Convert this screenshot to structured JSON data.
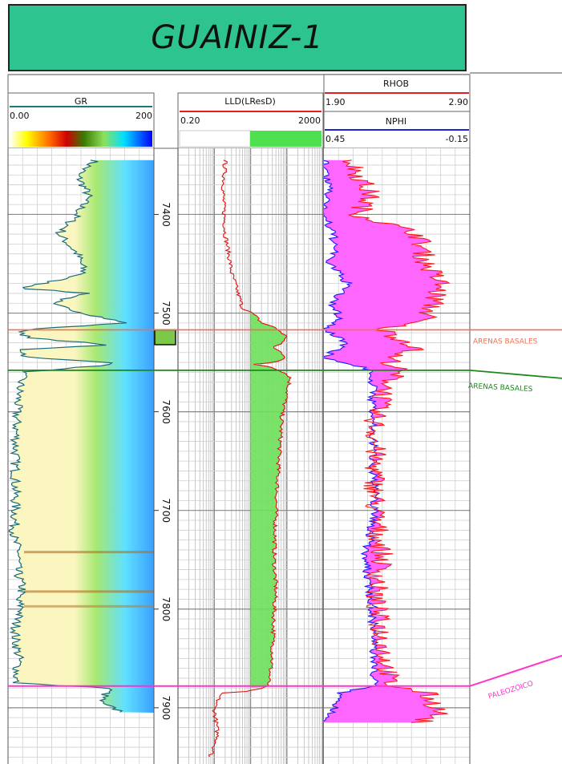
{
  "title": "GUAINIZ-1",
  "tracks": {
    "gr": {
      "name": "GR",
      "min": "0.00",
      "max": "200"
    },
    "lld": {
      "name": "LLD(LResD)",
      "min": "0.20",
      "max": "2000"
    },
    "rhob": {
      "name": "RHOB",
      "min": "1.90",
      "max": "2.90"
    },
    "nphi": {
      "name": "NPHI",
      "min": "0.45",
      "max": "-0.15"
    }
  },
  "depth_labels": [
    "7400",
    "7500",
    "7600",
    "7700",
    "7800",
    "7900"
  ],
  "markers": [
    {
      "name": "ARENAS BASALES",
      "depth": 7517,
      "color": "#f07050"
    },
    {
      "name": "ARENAS BASALES",
      "depth": 7558,
      "color": "#1a8a1a"
    },
    {
      "name": "PALEOZOICO",
      "depth": 7878,
      "color": "#ff33cc"
    }
  ],
  "colors": {
    "title_bg": "#2ec48f",
    "gr_fill": "#fbf6c0",
    "lld_fill": "#6ee05a",
    "rhob": "#ff2020",
    "nphi": "#2020ff",
    "crossover": "#ff66ff"
  },
  "chart_data": {
    "type": "line",
    "depth_range": [
      7333,
      7957
    ],
    "tracks": [
      {
        "name": "GR",
        "scale": "linear",
        "range": [
          0,
          200
        ],
        "points": [
          [
            7345,
            120
          ],
          [
            7360,
            95
          ],
          [
            7380,
            110
          ],
          [
            7400,
            95
          ],
          [
            7420,
            70
          ],
          [
            7440,
            95
          ],
          [
            7460,
            105
          ],
          [
            7475,
            20
          ],
          [
            7480,
            110
          ],
          [
            7490,
            55
          ],
          [
            7500,
            105
          ],
          [
            7510,
            160
          ],
          [
            7517,
            20
          ],
          [
            7525,
            25
          ],
          [
            7532,
            140
          ],
          [
            7537,
            20
          ],
          [
            7545,
            25
          ],
          [
            7551,
            160
          ],
          [
            7560,
            20
          ],
          [
            7580,
            15
          ],
          [
            7600,
            12
          ],
          [
            7650,
            10
          ],
          [
            7700,
            10
          ],
          [
            7730,
            8
          ],
          [
            7740,
            15
          ],
          [
            7760,
            12
          ],
          [
            7780,
            20
          ],
          [
            7790,
            12
          ],
          [
            7800,
            20
          ],
          [
            7810,
            12
          ],
          [
            7830,
            10
          ],
          [
            7850,
            15
          ],
          [
            7875,
            10
          ],
          [
            7880,
            140
          ],
          [
            7895,
            125
          ],
          [
            7905,
            160
          ]
        ]
      },
      {
        "name": "LLD(LResD)",
        "scale": "log",
        "range": [
          0.2,
          2000
        ],
        "points": [
          [
            7345,
            4
          ],
          [
            7380,
            3.5
          ],
          [
            7420,
            4
          ],
          [
            7460,
            6
          ],
          [
            7480,
            9
          ],
          [
            7495,
            12
          ],
          [
            7510,
            40
          ],
          [
            7525,
            200
          ],
          [
            7535,
            80
          ],
          [
            7545,
            200
          ],
          [
            7552,
            25
          ],
          [
            7565,
            250
          ],
          [
            7600,
            150
          ],
          [
            7650,
            120
          ],
          [
            7700,
            100
          ],
          [
            7750,
            90
          ],
          [
            7780,
            100
          ],
          [
            7800,
            90
          ],
          [
            7850,
            80
          ],
          [
            7877,
            60
          ],
          [
            7885,
            3
          ],
          [
            7900,
            2
          ],
          [
            7930,
            2.5
          ],
          [
            7950,
            1.5
          ]
        ]
      },
      {
        "name": "RHOB",
        "scale": "linear",
        "range": [
          1.9,
          2.9
        ],
        "points": [
          [
            7345,
            2.08
          ],
          [
            7380,
            2.22
          ],
          [
            7400,
            2.14
          ],
          [
            7420,
            2.55
          ],
          [
            7450,
            2.6
          ],
          [
            7470,
            2.7
          ],
          [
            7490,
            2.65
          ],
          [
            7505,
            2.6
          ],
          [
            7517,
            2.3
          ],
          [
            7535,
            2.55
          ],
          [
            7545,
            2.35
          ],
          [
            7558,
            2.4
          ],
          [
            7600,
            2.25
          ],
          [
            7700,
            2.25
          ],
          [
            7750,
            2.3
          ],
          [
            7790,
            2.25
          ],
          [
            7830,
            2.3
          ],
          [
            7877,
            2.35
          ],
          [
            7885,
            2.6
          ],
          [
            7905,
            2.7
          ],
          [
            7915,
            2.55
          ]
        ]
      },
      {
        "name": "NPHI",
        "scale": "linear",
        "range": [
          0.45,
          -0.15
        ],
        "points": [
          [
            7345,
            0.45
          ],
          [
            7380,
            0.43
          ],
          [
            7400,
            0.45
          ],
          [
            7430,
            0.4
          ],
          [
            7450,
            0.43
          ],
          [
            7470,
            0.35
          ],
          [
            7490,
            0.42
          ],
          [
            7505,
            0.38
          ],
          [
            7517,
            0.45
          ],
          [
            7530,
            0.35
          ],
          [
            7545,
            0.45
          ],
          [
            7558,
            0.25
          ],
          [
            7600,
            0.25
          ],
          [
            7700,
            0.24
          ],
          [
            7750,
            0.28
          ],
          [
            7800,
            0.25
          ],
          [
            7877,
            0.24
          ],
          [
            7885,
            0.38
          ],
          [
            7905,
            0.42
          ],
          [
            7920,
            0.45
          ]
        ]
      }
    ]
  }
}
